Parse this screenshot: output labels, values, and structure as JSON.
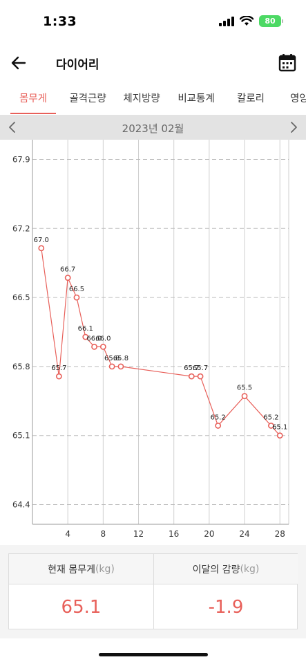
{
  "status": {
    "time": "1:33",
    "battery": "80"
  },
  "header": {
    "title": "다이어리"
  },
  "tabs": [
    {
      "label": "몸무게",
      "active": true
    },
    {
      "label": "골격근량",
      "active": false
    },
    {
      "label": "체지방량",
      "active": false
    },
    {
      "label": "비교통계",
      "active": false
    },
    {
      "label": "칼로리",
      "active": false
    },
    {
      "label": "영양",
      "active": false
    }
  ],
  "month": {
    "label": "2023년 02월"
  },
  "colors": {
    "accent": "#e8605a",
    "line": "#e8605a",
    "grid": "#cfcfcf"
  },
  "chart_data": {
    "type": "line",
    "title": "",
    "xlabel": "",
    "ylabel": "",
    "xlim": [
      0,
      29
    ],
    "ylim": [
      64.2,
      68.1
    ],
    "x_ticks": [
      "4",
      "8",
      "12",
      "16",
      "20",
      "24",
      "28"
    ],
    "y_ticks": [
      "67.9",
      "67.2",
      "66.5",
      "65.8",
      "65.1",
      "64.4"
    ],
    "grid": true,
    "legend": "none",
    "points": [
      {
        "x": 1,
        "y": 67.0,
        "label": "67.0"
      },
      {
        "x": 3,
        "y": 65.7,
        "label": "65.7"
      },
      {
        "x": 4,
        "y": 66.7,
        "label": "66.7"
      },
      {
        "x": 5,
        "y": 66.5,
        "label": "66.5"
      },
      {
        "x": 6,
        "y": 66.1,
        "label": "66.1"
      },
      {
        "x": 7,
        "y": 66.0,
        "label": "66.0"
      },
      {
        "x": 8,
        "y": 66.0,
        "label": "66.0"
      },
      {
        "x": 9,
        "y": 65.8,
        "label": "65.8"
      },
      {
        "x": 10,
        "y": 65.8,
        "label": "65.8"
      },
      {
        "x": 18,
        "y": 65.7,
        "label": "65.7"
      },
      {
        "x": 19,
        "y": 65.7,
        "label": "65.7"
      },
      {
        "x": 21,
        "y": 65.2,
        "label": "65.2"
      },
      {
        "x": 24,
        "y": 65.5,
        "label": "65.5"
      },
      {
        "x": 27,
        "y": 65.2,
        "label": "65.2"
      },
      {
        "x": 28,
        "y": 65.1,
        "label": "65.1"
      }
    ]
  },
  "summary": {
    "current_label": "현재 몸무게",
    "current_unit": "(kg)",
    "current_value": "65.1",
    "change_label": "이달의 감량",
    "change_unit": "(kg)",
    "change_value": "-1.9"
  }
}
